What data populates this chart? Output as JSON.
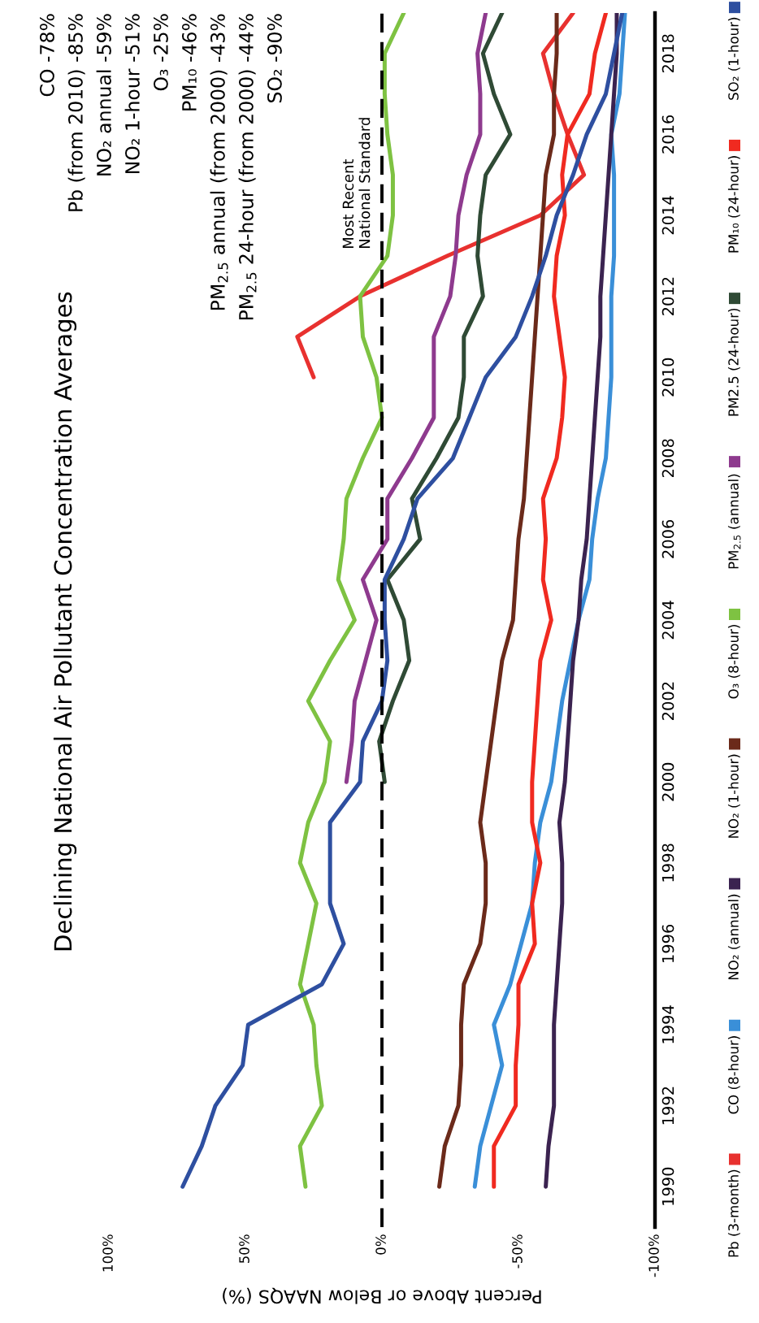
{
  "chart_data": {
    "type": "line",
    "title": "Declining National Air Pollutant Concentration Averages",
    "xlabel": "Percent Above or Below NAAQS (%)",
    "orientation": "horizontal",
    "annotations": [
      "CO -78%",
      "Pb (from 2010) -85%",
      "NO₂ annual -59%",
      "NO₂ 1-hour -51%",
      "O₃ -25%",
      "PM₁₀ -46%",
      "PM$_{2.5}$ annual (from 2000) -43%",
      "PM$_{2.5}$ 24-hour (from 2000) -44%",
      "SO₂ -90%"
    ],
    "x": [
      1990,
      1991,
      1992,
      1993,
      1994,
      1995,
      1996,
      1997,
      1998,
      1999,
      2000,
      2001,
      2002,
      2003,
      2004,
      2005,
      2006,
      2007,
      2008,
      2009,
      2010,
      2011,
      2012,
      2013,
      2014,
      2015,
      2016,
      2017,
      2018,
      2019
    ],
    "ylim": [
      1989,
      2019
    ],
    "yticks": [
      1990,
      1992,
      1994,
      1996,
      1998,
      2000,
      2002,
      2004,
      2006,
      2008,
      2010,
      2012,
      2014,
      2016,
      2018
    ],
    "xlim": [
      100,
      -100
    ],
    "xticks": [
      {
        "value": -100,
        "label": "-100%"
      },
      {
        "value": -50,
        "label": "-50%"
      },
      {
        "value": 0,
        "label": "0%"
      },
      {
        "value": 50,
        "label": "50%"
      },
      {
        "value": 100,
        "label": "100%"
      }
    ],
    "legend": "right",
    "line_style": "solid",
    "ref_lines": [
      {
        "axis": "x",
        "value": 0,
        "label": "Most Recent\nNational Standard",
        "color": "#000000",
        "line_style": "dashed"
      }
    ],
    "series": [
      {
        "name": "Pb (3-month)",
        "color": "#e8312f",
        "x": [
          2010,
          2011,
          2012,
          2013,
          2014,
          2015,
          2016,
          2017,
          2018,
          2019
        ],
        "values": [
          25,
          31,
          8,
          -24,
          -58,
          -74,
          -68,
          -63,
          -59,
          -70
        ]
      },
      {
        "name": "CO (8-hour)",
        "color": "#3a8fd8",
        "values": [
          -34,
          -36,
          -40,
          -44,
          -41,
          -47,
          -51,
          -55,
          -56,
          -58,
          -62,
          -64,
          -66,
          -69,
          -72,
          -76,
          -77,
          -79,
          -82,
          -83,
          -84,
          -84,
          -84,
          -85,
          -85,
          -85,
          -84,
          -87,
          -88,
          -89
        ]
      },
      {
        "name": "NO₂ (annual)",
        "color": "#3b2350",
        "values": [
          -60,
          -61,
          -63,
          -63,
          -63,
          -64,
          -65,
          -66,
          -66,
          -65,
          -67,
          -68,
          -69,
          -70,
          -72,
          -73,
          -75,
          -76,
          -77,
          -78,
          -79,
          -80,
          -80,
          -81,
          -82,
          -83,
          -84,
          -85,
          -86,
          -86
        ]
      },
      {
        "name": "NO₂ (1-hour)",
        "color": "#6b2a1a",
        "values": [
          -21,
          -23,
          -28,
          -29,
          -29,
          -30,
          -36,
          -38,
          -38,
          -36,
          -38,
          -40,
          -42,
          -44,
          -48,
          -49,
          -50,
          -52,
          -53,
          -54,
          -55,
          -56,
          -57,
          -58,
          -59,
          -60,
          -63,
          -63,
          -64,
          -64
        ]
      },
      {
        "name": "O₃ (8-hour)",
        "color": "#7ec242",
        "values": [
          28,
          30,
          22,
          24,
          25,
          30,
          27,
          24,
          30,
          27,
          21,
          19,
          27,
          19,
          10,
          16,
          14,
          13,
          7,
          0,
          2,
          7,
          8,
          -2,
          -4,
          -4,
          -2,
          -1,
          -1,
          -8
        ]
      },
      {
        "name": "PM$_{2.5}$ (annual)",
        "color": "#8e3a8e",
        "x": [
          2000,
          2001,
          2002,
          2003,
          2004,
          2005,
          2006,
          2007,
          2008,
          2009,
          2010,
          2011,
          2012,
          2013,
          2014,
          2015,
          2016,
          2017,
          2018,
          2019
        ],
        "values": [
          13,
          11,
          10,
          6,
          2,
          7,
          -2,
          -2,
          -11,
          -19,
          -19,
          -19,
          -25,
          -27,
          -28,
          -31,
          -36,
          -36,
          -35,
          -38
        ]
      },
      {
        "name": "PM2.5 (24-hour)",
        "color": "#2f4a35",
        "x": [
          2000,
          2001,
          2002,
          2003,
          2004,
          2005,
          2006,
          2007,
          2008,
          2009,
          2010,
          2011,
          2012,
          2013,
          2014,
          2015,
          2016,
          2017,
          2018,
          2019
        ],
        "values": [
          -1,
          1,
          -4,
          -10,
          -8,
          -2,
          -14,
          -11,
          -20,
          -28,
          -30,
          -30,
          -37,
          -35,
          -36,
          -38,
          -47,
          -41,
          -37,
          -44
        ]
      },
      {
        "name": "PM₁₀ (24-hour)",
        "color": "#f02a20",
        "values": [
          -41,
          -41,
          -49,
          -49,
          -50,
          -50,
          -56,
          -55,
          -58,
          -55,
          -55,
          -56,
          -57,
          -58,
          -62,
          -59,
          -60,
          -59,
          -64,
          -66,
          -67,
          -65,
          -63,
          -64,
          -67,
          -66,
          -68,
          -76,
          -78,
          -82
        ]
      },
      {
        "name": "SO₂ (1-hour)",
        "color": "#2e4fa0",
        "values": [
          73,
          66,
          61,
          51,
          49,
          22,
          14,
          19,
          19,
          19,
          8,
          7,
          0,
          -2,
          -1,
          -1,
          -8,
          -13,
          -26,
          -32,
          -38,
          -49,
          -55,
          -60,
          -64,
          -70,
          -75,
          -82,
          -85,
          -88
        ]
      }
    ]
  }
}
